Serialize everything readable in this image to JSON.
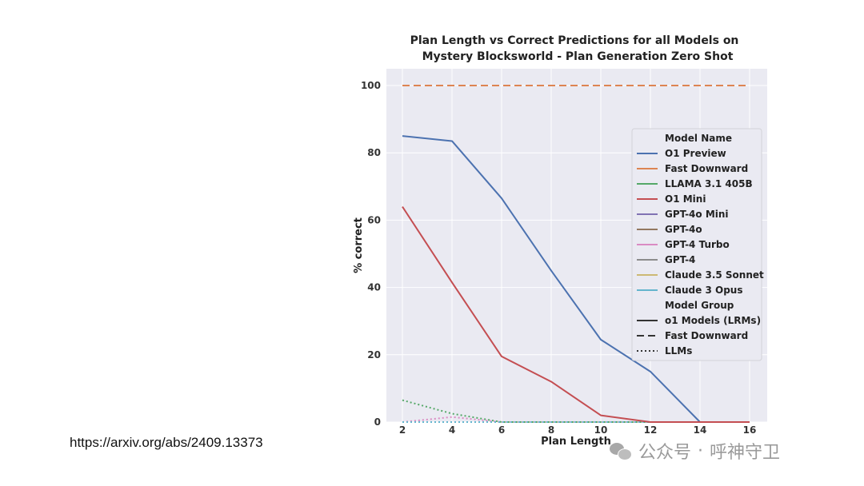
{
  "chart_data": {
    "type": "line",
    "title": "Plan Length vs Correct Predictions for all Models on",
    "subtitle": "Mystery Blocksworld - Plan Generation Zero Shot",
    "xlabel": "Plan Length",
    "ylabel": "% correct",
    "xlim": [
      2,
      16
    ],
    "ylim": [
      0,
      100
    ],
    "xticks": [
      2,
      4,
      6,
      8,
      10,
      12,
      14,
      16
    ],
    "yticks": [
      0,
      20,
      40,
      60,
      80,
      100
    ],
    "x": [
      2,
      4,
      6,
      8,
      10,
      12,
      14,
      16
    ],
    "grid": true,
    "legend_position": "right",
    "legend_header": "Model Name",
    "group_header": "Model Group",
    "series": [
      {
        "name": "O1 Preview",
        "color": "#4c72b0",
        "group": "solid",
        "values": [
          85,
          83.5,
          66.5,
          45,
          24.5,
          15,
          0,
          0
        ]
      },
      {
        "name": "Fast Downward",
        "color": "#dd8452",
        "group": "dashed",
        "values": [
          100,
          100,
          100,
          100,
          100,
          100,
          100,
          100
        ]
      },
      {
        "name": "LLAMA 3.1 405B",
        "color": "#55a868",
        "group": "dotted",
        "values": [
          6.5,
          2.5,
          0,
          0,
          0,
          0,
          0,
          0
        ]
      },
      {
        "name": "O1 Mini",
        "color": "#c44e52",
        "group": "solid",
        "values": [
          64,
          41.5,
          19.5,
          12,
          2,
          0,
          0,
          0
        ]
      },
      {
        "name": "GPT-4o Mini",
        "color": "#8172b3",
        "group": "dotted",
        "values": [
          0,
          0,
          0,
          0,
          0,
          0,
          0,
          0
        ]
      },
      {
        "name": "GPT-4o",
        "color": "#937860",
        "group": "dotted",
        "values": [
          0,
          0,
          0,
          0,
          0,
          0,
          0,
          0
        ]
      },
      {
        "name": "GPT-4 Turbo",
        "color": "#da8bc3",
        "group": "dotted",
        "values": [
          0,
          1.5,
          0,
          0,
          0,
          0,
          0,
          0
        ]
      },
      {
        "name": "GPT-4",
        "color": "#8c8c8c",
        "group": "dotted",
        "values": [
          0,
          0,
          0,
          0,
          0,
          0,
          0,
          0
        ]
      },
      {
        "name": "Claude 3.5 Sonnet",
        "color": "#ccb974",
        "group": "dotted",
        "values": [
          0,
          0,
          0,
          0,
          0,
          0,
          0,
          0
        ]
      },
      {
        "name": "Claude 3 Opus",
        "color": "#64b5cd",
        "group": "dotted",
        "values": [
          0,
          0,
          0,
          0,
          0,
          0,
          0,
          0
        ]
      }
    ],
    "groups": [
      {
        "name": "o1 Models (LRMs)",
        "style": "solid"
      },
      {
        "name": "Fast Downward",
        "style": "dashed"
      },
      {
        "name": "LLMs",
        "style": "dotted"
      }
    ]
  },
  "footer": {
    "source_url": "https://arxiv.org/abs/2409.13373",
    "watermark_text": "公众号",
    "watermark_sep": "·",
    "watermark_name": "呼神守卫"
  }
}
